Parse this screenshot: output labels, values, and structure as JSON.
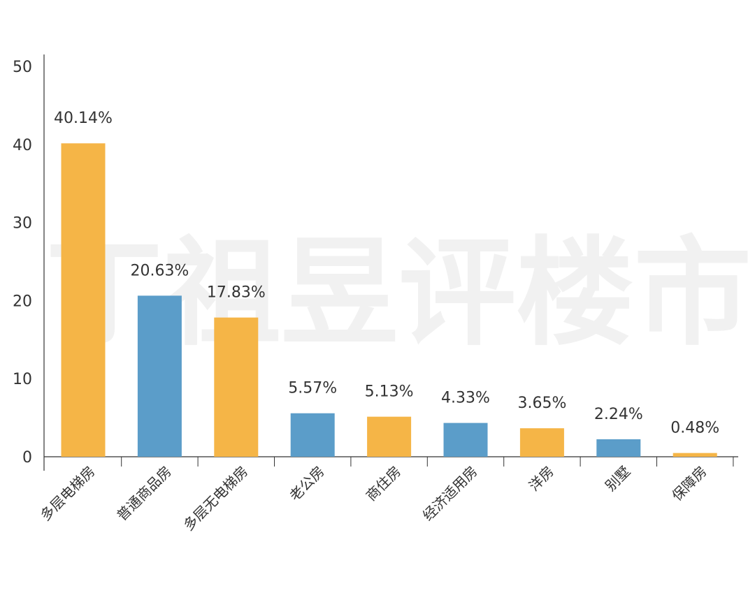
{
  "chart_data": {
    "type": "bar",
    "title": "",
    "xlabel": "",
    "ylabel": "",
    "ylim": [
      0,
      50
    ],
    "yticks": [
      0,
      10,
      20,
      30,
      40,
      50
    ],
    "grid": false,
    "legend": "none",
    "categories": [
      "多层电梯房",
      "普通商品房",
      "多层无电梯房",
      "老公房",
      "商住房",
      "经济适用房",
      "洋房",
      "别墅",
      "保障房"
    ],
    "values": [
      40.14,
      20.63,
      17.83,
      5.57,
      5.13,
      4.33,
      3.65,
      2.24,
      0.48
    ],
    "data_labels": [
      "40.14%",
      "20.63%",
      "17.83%",
      "5.57%",
      "5.13%",
      "4.33%",
      "3.65%",
      "2.24%",
      "0.48%"
    ],
    "bar_colors": [
      "#F5B547",
      "#5B9DC9",
      "#F5B547",
      "#5B9DC9",
      "#F5B547",
      "#5B9DC9",
      "#F5B547",
      "#5B9DC9",
      "#F5B547"
    ],
    "watermark": "丁祖昱评楼市"
  }
}
